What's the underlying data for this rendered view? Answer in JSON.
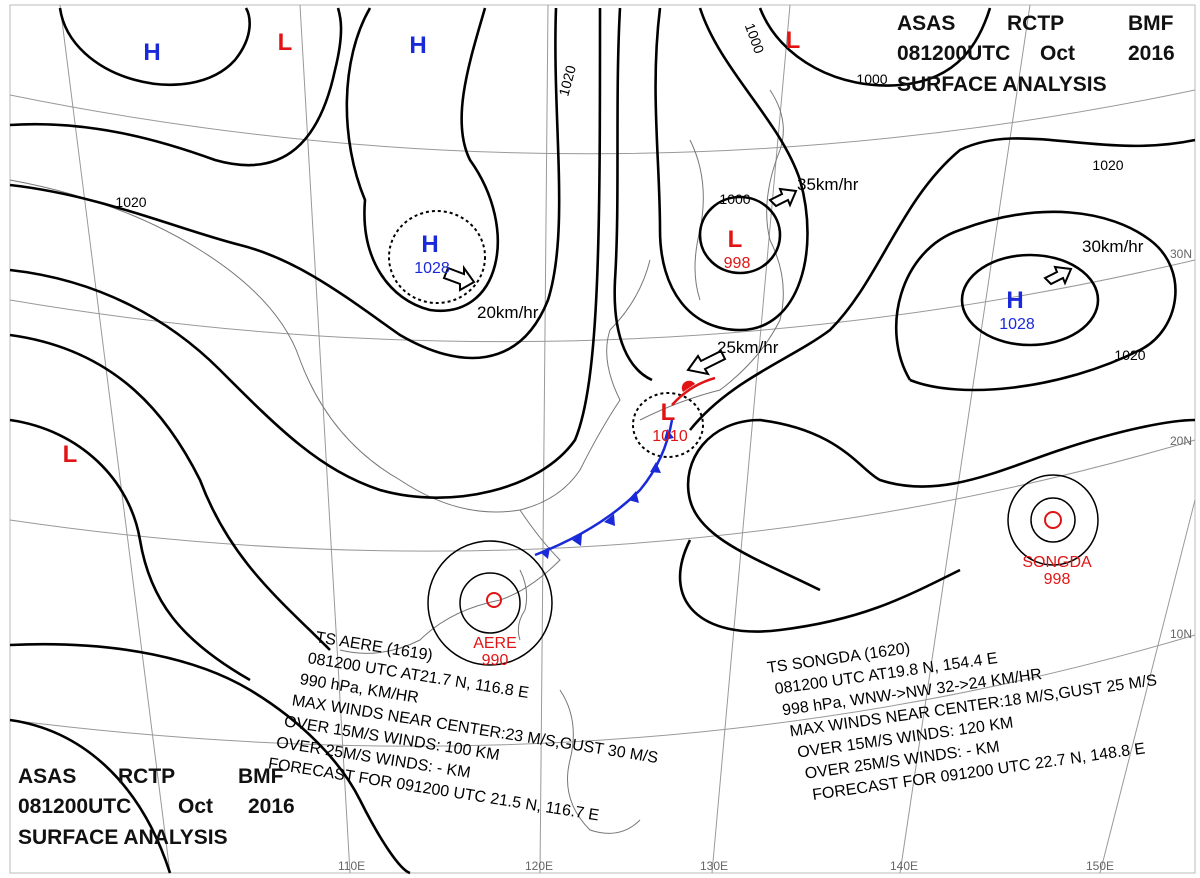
{
  "header": {
    "station": [
      "ASAS",
      "RCTP",
      "BMF"
    ],
    "time": [
      "081200UTC",
      "Oct",
      "2016"
    ],
    "title": "SURFACE ANALYSIS"
  },
  "pressure_systems": [
    {
      "symbol": "H"
    },
    {
      "symbol": "L"
    },
    {
      "symbol": "H"
    },
    {
      "symbol": "H",
      "value": 1028
    },
    {
      "symbol": "L"
    },
    {
      "symbol": "L"
    },
    {
      "symbol": "L",
      "value": 998
    },
    {
      "symbol": "L",
      "value": 1010
    },
    {
      "symbol": "H",
      "value": 1028
    }
  ],
  "typhoon_markers": [
    {
      "name": "AERE",
      "pressure": 990
    },
    {
      "name": "SONGDA",
      "pressure": 998
    }
  ],
  "isobar_labels": [
    1020,
    1020,
    1000,
    1000,
    1020,
    1000,
    1020
  ],
  "motion_labels": [
    "20km/hr",
    "25km/hr",
    "35km/hr",
    "30km/hr"
  ],
  "latitude_labels": [
    "30N",
    "20N",
    "10N"
  ],
  "longitude_labels": [
    "110E",
    "120E",
    "130E",
    "140E",
    "150E"
  ],
  "typhoon_reports": [
    {
      "lines": [
        "TS  AERE  (1619)",
        "081200 UTC  AT21.7 N, 116.8 E",
        "990 hPa,    KM/HR",
        "MAX WINDS NEAR CENTER:23 M/S,GUST 30 M/S",
        "OVER 15M/S WINDS: 100 KM",
        "OVER 25M/S WINDS: - KM",
        "FORECAST FOR 091200 UTC 21.5 N, 116.7 E"
      ]
    },
    {
      "lines": [
        "TS  SONGDA  (1620)",
        "081200 UTC  AT19.8 N, 154.4 E",
        "998 hPa, WNW->NW 32->24 KM/HR",
        "MAX WINDS NEAR CENTER:18 M/S,GUST 25 M/S",
        "OVER 15M/S WINDS: 120 KM",
        "OVER 25M/S WINDS: - KM",
        "FORECAST FOR 091200 UTC 22.7 N, 148.8 E"
      ]
    }
  ]
}
